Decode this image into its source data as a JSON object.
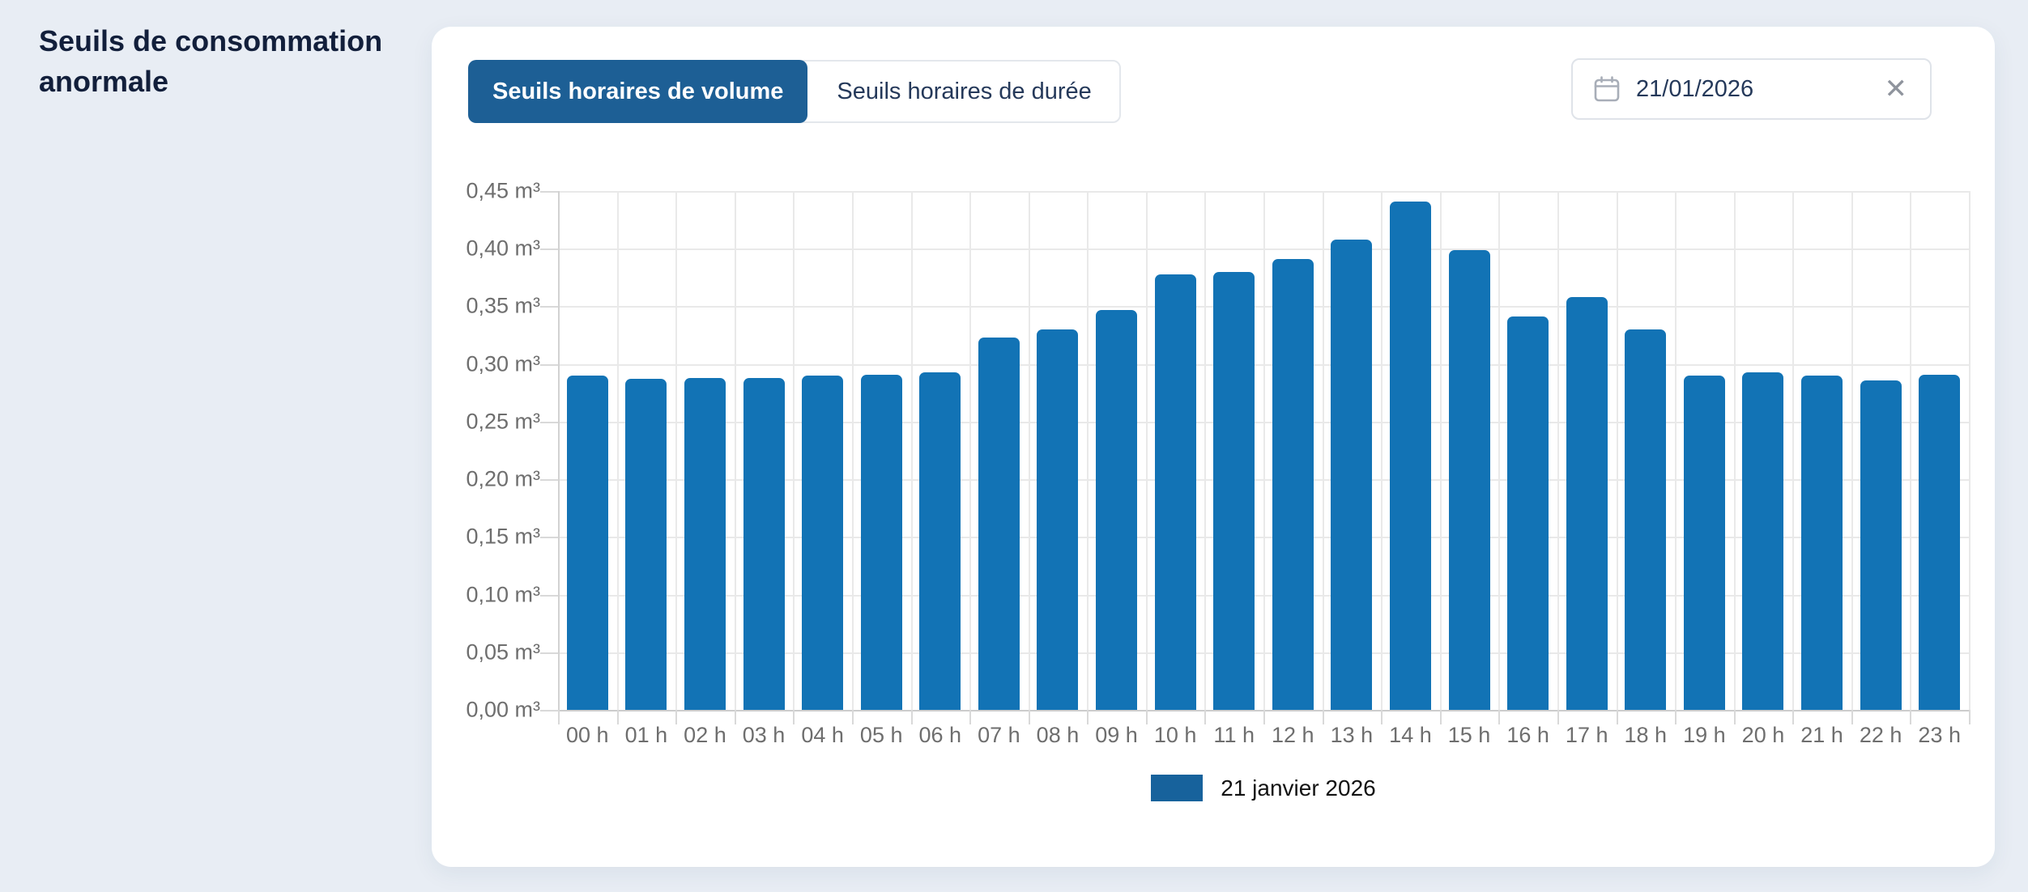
{
  "page": {
    "title": "Seuils de consommation anormale",
    "background": "#e8edf4"
  },
  "tabs": {
    "volume_label": "Seuils horaires de volume",
    "duration_label": "Seuils horaires de durée",
    "active": "volume"
  },
  "date_picker": {
    "value": "21/01/2026",
    "calendar_icon": "calendar-icon",
    "clear_icon": "x-clear-icon"
  },
  "colors": {
    "bar_blue": "#1273b5",
    "accent_dark_blue": "#1d5f95",
    "legend_swatch_blue": "#17629c",
    "card_background": "#ffffff",
    "page_background": "#e8edf4",
    "grid_line": "#e9e9e9",
    "axis_text": "#6e6e6e"
  },
  "chart_data": {
    "type": "bar",
    "title": "",
    "xlabel": "",
    "ylabel": "",
    "unit": "m³",
    "categories": [
      "00 h",
      "01 h",
      "02 h",
      "03 h",
      "04 h",
      "05 h",
      "06 h",
      "07 h",
      "08 h",
      "09 h",
      "10 h",
      "11 h",
      "12 h",
      "13 h",
      "14 h",
      "15 h",
      "16 h",
      "17 h",
      "18 h",
      "19 h",
      "20 h",
      "21 h",
      "22 h",
      "23 h"
    ],
    "values": [
      0.29,
      0.287,
      0.288,
      0.288,
      0.29,
      0.291,
      0.293,
      0.323,
      0.33,
      0.347,
      0.378,
      0.38,
      0.391,
      0.408,
      0.441,
      0.399,
      0.341,
      0.358,
      0.33,
      0.29,
      0.293,
      0.29,
      0.286,
      0.291
    ],
    "ylim": [
      0,
      0.45
    ],
    "ytick_step": 0.05,
    "y_tick_labels": [
      "0,00 m³",
      "0,05 m³",
      "0,10 m³",
      "0,15 m³",
      "0,20 m³",
      "0,25 m³",
      "0,30 m³",
      "0,35 m³",
      "0,40 m³",
      "0,45 m³"
    ],
    "grid": true,
    "legend_position": "bottom",
    "legend": [
      {
        "label": "21 janvier 2026",
        "color": "#17629c"
      }
    ]
  }
}
